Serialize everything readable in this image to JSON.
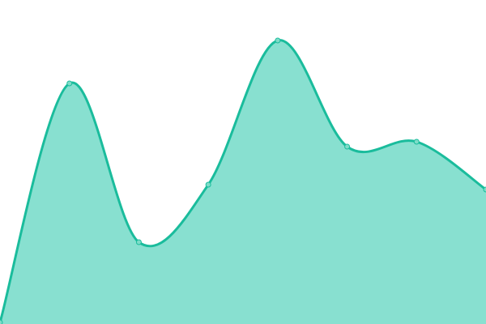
{
  "chart_data": {
    "type": "area",
    "title": "",
    "xlabel": "",
    "ylabel": "",
    "x": [
      0,
      1,
      2,
      3,
      4,
      5,
      6,
      7
    ],
    "values": [
      2,
      297,
      101,
      172,
      350,
      219,
      225,
      166
    ],
    "ylim": [
      0,
      400
    ],
    "grid": false,
    "legend": "none",
    "curve": "smooth",
    "colors": {
      "line": "#1abc9c",
      "fill": "#88e0d0",
      "marker_fill": "#7fdcc8"
    }
  }
}
